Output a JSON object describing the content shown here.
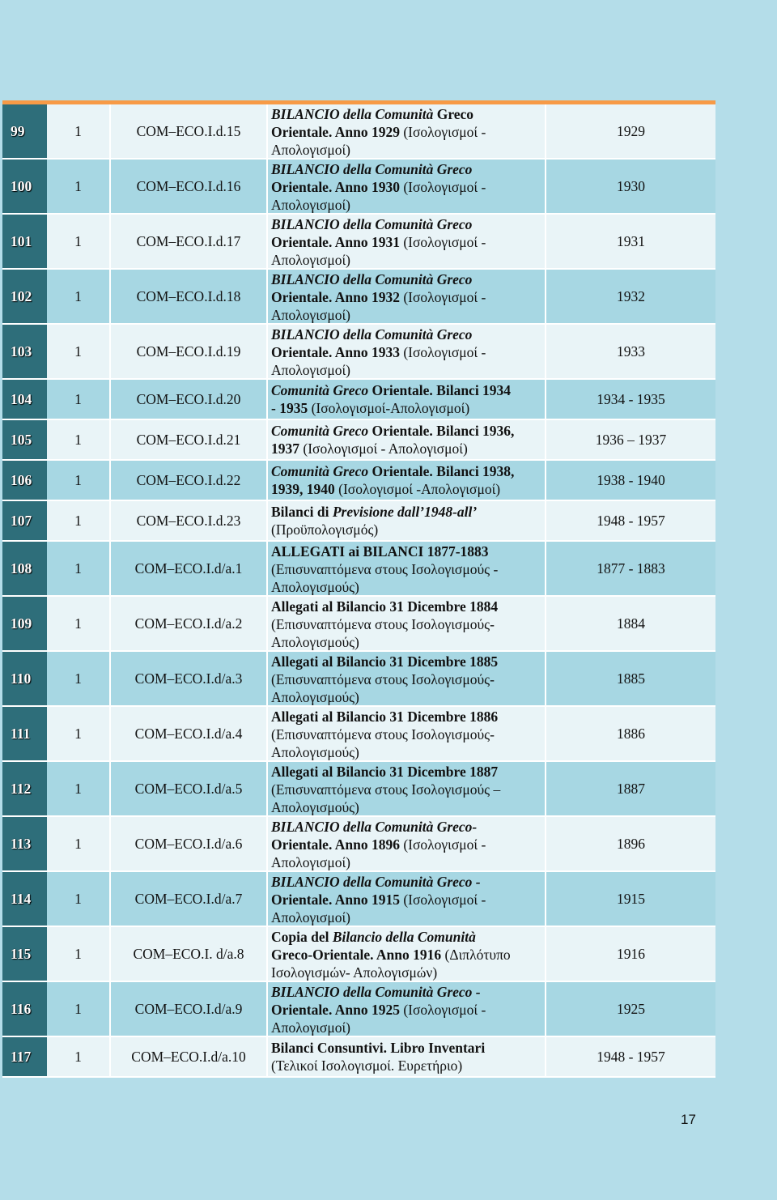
{
  "rows": [
    {
      "num": "99",
      "vol": "1",
      "code": "COM–ECO.I.d.15",
      "desc_parts": [
        {
          "t": "BILANCIO della Comunità",
          "s": "i"
        },
        {
          "t": " Greco",
          "s": "b"
        },
        {
          "t": "Orientale. Anno 1929",
          "s": "b",
          "br": true
        },
        {
          "t": " (Ισολογισμοί -",
          "s": ""
        },
        {
          "t": "Απολογισμοί)",
          "s": "",
          "br": true
        }
      ],
      "years": "1929",
      "h": 68
    },
    {
      "num": "100",
      "vol": "1",
      "code": "COM–ECO.I.d.16",
      "desc_parts": [
        {
          "t": "BILANCIO della Comunità Greco",
          "s": "i"
        },
        {
          "t": "Orientale. Anno 1930",
          "s": "b",
          "br": true
        },
        {
          "t": " (Ισολογισμοί -",
          "s": ""
        },
        {
          "t": "Απολογισμοί)",
          "s": "",
          "br": true
        }
      ],
      "years": "1930",
      "h": 68
    },
    {
      "num": "101",
      "vol": "1",
      "code": "COM–ECO.I.d.17",
      "desc_parts": [
        {
          "t": "BILANCIO della Comunità Greco",
          "s": "i"
        },
        {
          "t": "Orientale. Anno 1931",
          "s": "b",
          "br": true
        },
        {
          "t": " (Ισολογισμοί -",
          "s": ""
        },
        {
          "t": "Απολογισμοί)",
          "s": "",
          "br": true
        }
      ],
      "years": "1931",
      "h": 68
    },
    {
      "num": "102",
      "vol": "1",
      "code": "COM–ECO.I.d.18",
      "desc_parts": [
        {
          "t": "BILANCIO della Comunità Greco",
          "s": "i"
        },
        {
          "t": "Orientale. Anno 1932",
          "s": "b",
          "br": true
        },
        {
          "t": " (Ισολογισμοί -",
          "s": ""
        },
        {
          "t": "Απολογισμοί)",
          "s": "",
          "br": true
        }
      ],
      "years": "1932",
      "h": 68
    },
    {
      "num": "103",
      "vol": "1",
      "code": "COM–ECO.I.d.19",
      "desc_parts": [
        {
          "t": "BILANCIO della Comunità Greco",
          "s": "i"
        },
        {
          "t": "Orientale. Anno 1933",
          "s": "b",
          "br": true
        },
        {
          "t": " (Ισολογισμοί -",
          "s": ""
        },
        {
          "t": "Απολογισμοί)",
          "s": "",
          "br": true
        }
      ],
      "years": "1933",
      "h": 68
    },
    {
      "num": "104",
      "vol": "1",
      "code": "COM–ECO.I.d.20",
      "desc_parts": [
        {
          "t": "Comunità Greco",
          "s": "i"
        },
        {
          "t": " Orientale. Bilanci 1934",
          "s": "b"
        },
        {
          "t": "- 1935",
          "s": "b",
          "br": true
        },
        {
          "t": " (Ισολογισμοί-Απολογισμοί)",
          "s": ""
        }
      ],
      "years": "1934 - 1935",
      "h": 50
    },
    {
      "num": "105",
      "vol": "1",
      "code": "COM–ECO.I.d.21",
      "desc_parts": [
        {
          "t": "Comunità Greco",
          "s": "i"
        },
        {
          "t": " Orientale. Bilanci 1936,",
          "s": "b"
        },
        {
          "t": "1937",
          "s": "b",
          "br": true
        },
        {
          "t": " (Ισολογισμοί - Απολογισμοί)",
          "s": ""
        }
      ],
      "years": "1936 – 1937",
      "h": 50
    },
    {
      "num": "106",
      "vol": "1",
      "code": "COM–ECO.I.d.22",
      "desc_parts": [
        {
          "t": "Comunità Greco",
          "s": "i"
        },
        {
          "t": " Orientale. Bilanci 1938,",
          "s": "b"
        },
        {
          "t": "1939, 1940",
          "s": "b",
          "br": true
        },
        {
          "t": " (Ισολογισμοί -Απολογισμοί)",
          "s": ""
        }
      ],
      "years": "1938 - 1940",
      "h": 50
    },
    {
      "num": "107",
      "vol": "1",
      "code": "COM–ECO.I.d.23",
      "desc_parts": [
        {
          "t": "Bilanci di ",
          "s": "b"
        },
        {
          "t": "Previsione dall’1948-all’",
          "s": "i"
        },
        {
          "t": "(Προϋπολογισμός)",
          "s": "",
          "br": true
        }
      ],
      "years": "1948 - 1957",
      "h": 50
    },
    {
      "num": "108",
      "vol": "1",
      "code": "COM–ECO.I.d/a.1",
      "desc_parts": [
        {
          "t": "ALLEGATI ai BILANCI 1877-1883",
          "s": "b"
        },
        {
          "t": "(Επισυναπτόμενα στους Ισολογισμούς -",
          "s": "",
          "br": true
        },
        {
          "t": "Απολογισμούς)",
          "s": "",
          "br": true
        }
      ],
      "years": "1877 - 1883",
      "h": 68
    },
    {
      "num": "109",
      "vol": "1",
      "code": "COM–ECO.I.d/a.2",
      "desc_parts": [
        {
          "t": "Allegati al Bilancio 31 Dicembre 1884",
          "s": "b"
        },
        {
          "t": "(Επισυναπτόμενα στους Ισολογισμούς-",
          "s": "",
          "br": true
        },
        {
          "t": "Απολογισμούς)",
          "s": "",
          "br": true
        }
      ],
      "years": "1884",
      "h": 68
    },
    {
      "num": "110",
      "vol": "1",
      "code": "COM–ECO.I.d/a.3",
      "desc_parts": [
        {
          "t": "Allegati al Bilancio 31 Dicembre 1885",
          "s": "b"
        },
        {
          "t": "(Επισυναπτόμενα στους Ισολογισμούς-",
          "s": "",
          "br": true
        },
        {
          "t": "Απολογισμούς)",
          "s": "",
          "br": true
        }
      ],
      "years": "1885",
      "h": 68
    },
    {
      "num": "111",
      "vol": "1",
      "code": "COM–ECO.I.d/a.4",
      "desc_parts": [
        {
          "t": "Allegati al Bilancio 31 Dicembre 1886",
          "s": "b"
        },
        {
          "t": "(Επισυναπτόμενα στους Ισολογισμούς-",
          "s": "",
          "br": true
        },
        {
          "t": "Απολογισμούς)",
          "s": "",
          "br": true
        }
      ],
      "years": "1886",
      "h": 68
    },
    {
      "num": "112",
      "vol": "1",
      "code": "COM–ECO.I.d/a.5",
      "desc_parts": [
        {
          "t": "Allegati al Bilancio 31 Dicembre 1887",
          "s": "b"
        },
        {
          "t": "(Επισυναπτόμενα στους Ισολογισμούς –",
          "s": "",
          "br": true
        },
        {
          "t": "Απολογισμούς)",
          "s": "",
          "br": true
        }
      ],
      "years": "1887",
      "h": 68
    },
    {
      "num": "113",
      "vol": "1",
      "code": "COM–ECO.I.d/a.6",
      "desc_parts": [
        {
          "t": "BILANCIO della Comunità Greco-",
          "s": "i"
        },
        {
          "t": "Orientale. Anno 1896",
          "s": "b",
          "br": true
        },
        {
          "t": " (Ισολογισμοί -",
          "s": ""
        },
        {
          "t": "Απολογισμοί)",
          "s": "",
          "br": true
        }
      ],
      "years": "1896",
      "h": 68
    },
    {
      "num": "114",
      "vol": "1",
      "code": "COM–ECO.I.d/a.7",
      "desc_parts": [
        {
          "t": "BILANCIO della Comunità Greco -",
          "s": "i"
        },
        {
          "t": "Orientale. Anno 1915",
          "s": "b",
          "br": true
        },
        {
          "t": " (Ισολογισμοί -",
          "s": ""
        },
        {
          "t": "Απολογισμοί)",
          "s": "",
          "br": true
        }
      ],
      "years": "1915",
      "h": 68
    },
    {
      "num": "115",
      "vol": "1",
      "code": "COM–ECO.I. d/a.8",
      "desc_parts": [
        {
          "t": "Copia del ",
          "s": "b"
        },
        {
          "t": "Bilancio della Comunità",
          "s": "i"
        },
        {
          "t": "Greco-Orientale. Anno 1916",
          "s": "b",
          "br": true
        },
        {
          "t": " (Διπλότυπο",
          "s": ""
        },
        {
          "t": "Ισολογισμών- Απολογισμών)",
          "s": "",
          "br": true
        }
      ],
      "years": "1916",
      "h": 68
    },
    {
      "num": "116",
      "vol": "1",
      "code": "COM–ECO.I.d/a.9",
      "desc_parts": [
        {
          "t": "BILANCIO della Comunità Greco -",
          "s": "i"
        },
        {
          "t": "Orientale. Anno 1925",
          "s": "b",
          "br": true
        },
        {
          "t": " (Ισολογισμοί -",
          "s": ""
        },
        {
          "t": "Απολογισμοί)",
          "s": "",
          "br": true
        }
      ],
      "years": "1925",
      "h": 68
    },
    {
      "num": "117",
      "vol": "1",
      "code": "COM–ECO.I.d/a.10",
      "desc_parts": [
        {
          "t": "Bilanci Consuntivi. Libro Inventari",
          "s": "b"
        },
        {
          "t": "(Τελικοί Ισολογισμοί. Ευρετήριο)",
          "s": "",
          "br": true
        }
      ],
      "years": "1948 - 1957",
      "h": 50
    }
  ],
  "page_number": "17"
}
